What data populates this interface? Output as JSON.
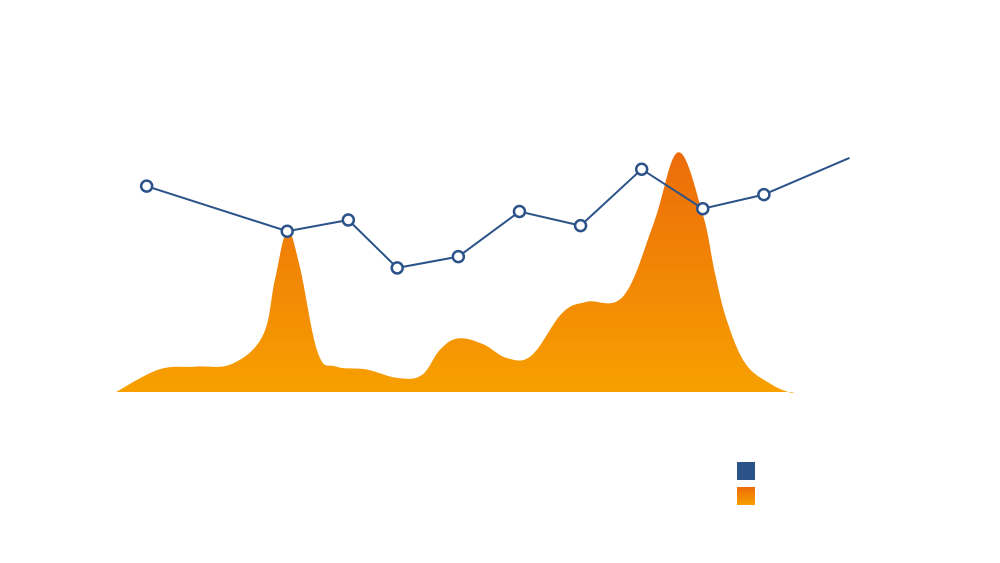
{
  "chart_data": {
    "type": "line",
    "title": "",
    "xlabel": "",
    "ylabel": "",
    "grid": false,
    "axes_visible": false,
    "legend_placement": "bottom-right",
    "series": [
      {
        "type": "line",
        "color": "#2b5389",
        "marker": "open-circle",
        "x": [
          0,
          2.3,
          3.3,
          4.1,
          5.1,
          6.1,
          7.1,
          8.1,
          9.1,
          10.1,
          11.5
        ],
        "values": [
          73,
          57,
          61,
          44,
          48,
          64,
          59,
          79,
          65,
          70,
          83
        ],
        "markers_shown": [
          true,
          true,
          true,
          true,
          true,
          true,
          true,
          true,
          true,
          true,
          false
        ]
      },
      {
        "type": "area",
        "gradient": [
          "#f7a000",
          "#ec6c0a"
        ],
        "x": [
          -0.5,
          0.2,
          0.8,
          1.4,
          1.9,
          2.1,
          2.3,
          2.5,
          2.8,
          3.1,
          3.6,
          4.1,
          4.5,
          4.8,
          5.1,
          5.5,
          5.9,
          6.3,
          6.8,
          7.2,
          7.8,
          8.3,
          8.7,
          9.1,
          9.3,
          9.5,
          9.8,
          10.2,
          10.5,
          10.6
        ],
        "values": [
          0,
          8,
          9,
          10,
          20,
          40,
          57,
          45,
          14,
          9,
          8,
          5,
          6,
          15,
          19,
          17,
          12,
          13,
          28,
          32,
          34,
          60,
          85,
          63,
          42,
          25,
          10,
          3,
          0,
          0
        ]
      }
    ],
    "xlim": [
      -0.6,
      12.0
    ],
    "ylim": [
      0,
      100
    ],
    "legend": [
      {
        "label": "",
        "color": "#2b5389",
        "style": "solid"
      },
      {
        "label": "",
        "color": "#f7a000",
        "style": "gradient"
      }
    ]
  }
}
